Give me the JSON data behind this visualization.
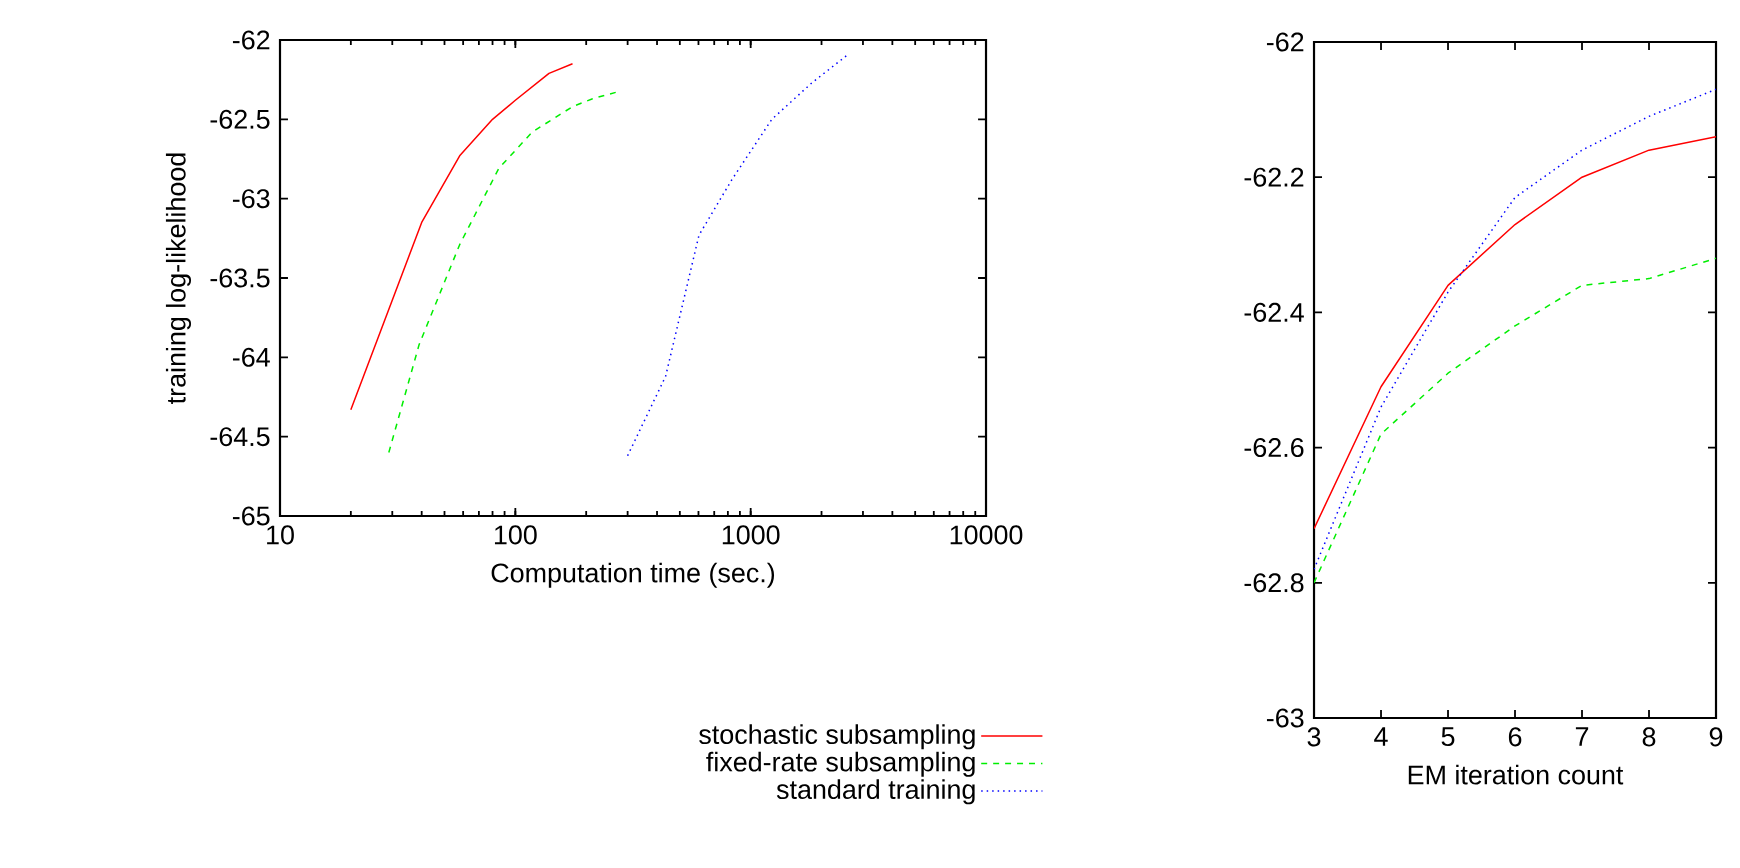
{
  "chart_data": [
    {
      "type": "line",
      "xlabel": "Computation time (sec.)",
      "ylabel": "training log-likelihood",
      "log": "x",
      "xlim": [
        10,
        10000
      ],
      "ylim": [
        -65,
        -62
      ],
      "xticks": [
        10,
        100,
        1000,
        10000
      ],
      "yticks": [
        -65,
        -64.5,
        -64,
        -63.5,
        -63,
        -62.5,
        -62
      ],
      "legend": "bottom",
      "series": [
        {
          "name": "stochastic subsampling",
          "color": "#ff0000",
          "line_style": "solid",
          "x": [
            20,
            40,
            58,
            80,
            100,
            139,
            175
          ],
          "values": [
            -64.33,
            -63.15,
            -62.73,
            -62.5,
            -62.38,
            -62.21,
            -62.15
          ]
        },
        {
          "name": "fixed-rate subsampling",
          "color": "#00ee00",
          "line_style": "dashed",
          "x": [
            29,
            39,
            58,
            85,
            118,
            175,
            213,
            267
          ],
          "values": [
            -64.6,
            -63.92,
            -63.29,
            -62.81,
            -62.58,
            -62.42,
            -62.37,
            -62.33
          ]
        },
        {
          "name": "standard training",
          "color": "#0000ff",
          "line_style": "dotted",
          "x": [
            300,
            435,
            603,
            832,
            1230,
            1820,
            2600
          ],
          "values": [
            -64.62,
            -64.12,
            -63.23,
            -62.88,
            -62.5,
            -62.27,
            -62.09
          ]
        }
      ]
    },
    {
      "type": "line",
      "xlabel": "EM iteration count",
      "xlim": [
        3,
        9
      ],
      "ylim": [
        -63,
        -62
      ],
      "xticks": [
        3,
        4,
        5,
        6,
        7,
        8,
        9
      ],
      "yticks": [
        -63,
        -62.8,
        -62.6,
        -62.4,
        -62.2,
        -62
      ],
      "series": [
        {
          "color": "#ff0000",
          "line_style": "solid",
          "x": [
            3,
            4,
            5,
            6,
            7,
            8,
            9
          ],
          "values": [
            -62.72,
            -62.51,
            -62.36,
            -62.27,
            -62.2,
            -62.16,
            -62.14
          ]
        },
        {
          "color": "#00ee00",
          "line_style": "dashed",
          "x": [
            3,
            4,
            5,
            6,
            7,
            8,
            9
          ],
          "values": [
            -62.8,
            -62.58,
            -62.49,
            -62.42,
            -62.36,
            -62.35,
            -62.32
          ]
        },
        {
          "color": "#0000ff",
          "line_style": "dotted",
          "x": [
            3,
            4,
            5,
            6,
            7,
            8,
            9
          ],
          "values": [
            -62.78,
            -62.54,
            -62.37,
            -62.23,
            -62.16,
            -62.11,
            -62.07
          ]
        }
      ]
    }
  ]
}
